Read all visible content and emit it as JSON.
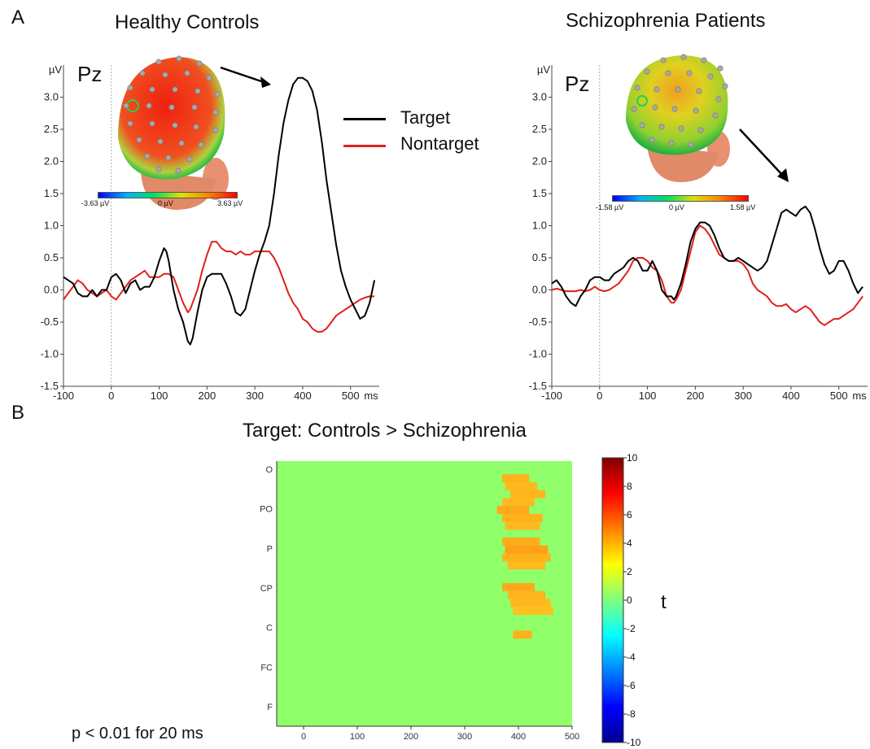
{
  "panel_a": {
    "letter": "A"
  },
  "panel_b": {
    "letter": "B",
    "title": "Target: Controls > Schizophrenia",
    "note": "p < 0.01 for 20 ms"
  },
  "colors": {
    "target": "#000000",
    "nontarget": "#e0201b",
    "sig_bg": "#90ff6a"
  },
  "legend": {
    "target": "Target",
    "nontarget": "Nontarget"
  },
  "chart_data": [
    {
      "type": "line",
      "title": "Healthy Controls",
      "electrode": "Pz",
      "ylabel": "µV",
      "xunit": "ms",
      "xlim": [
        -100,
        560
      ],
      "ylim": [
        -1.5,
        3.5
      ],
      "xticks": [
        -100,
        0,
        100,
        200,
        300,
        400,
        500
      ],
      "yticks": [
        "-1.5",
        "-1.0",
        "-0.5",
        "0.0",
        "0.5",
        "1.0",
        "1.5",
        "2.0",
        "2.5",
        "3.0"
      ],
      "topo_scale": [
        "-3.63 µV",
        "0 µV",
        "3.63 µV"
      ],
      "series": [
        {
          "name": "Target",
          "x": [
            -100,
            -90,
            -80,
            -70,
            -60,
            -50,
            -40,
            -30,
            -20,
            -10,
            0,
            10,
            20,
            30,
            40,
            50,
            60,
            70,
            80,
            90,
            100,
            110,
            115,
            120,
            130,
            140,
            150,
            160,
            165,
            170,
            180,
            190,
            200,
            210,
            220,
            230,
            240,
            250,
            260,
            270,
            280,
            290,
            300,
            310,
            320,
            330,
            340,
            350,
            360,
            370,
            380,
            390,
            400,
            410,
            420,
            430,
            440,
            450,
            460,
            470,
            480,
            490,
            500,
            510,
            520,
            530,
            540,
            550
          ],
          "y": [
            0.2,
            0.15,
            0.1,
            -0.05,
            -0.1,
            -0.1,
            0.0,
            -0.1,
            0.0,
            0.0,
            0.2,
            0.25,
            0.15,
            -0.05,
            0.1,
            0.15,
            0.0,
            0.05,
            0.05,
            0.2,
            0.45,
            0.65,
            0.6,
            0.45,
            0.0,
            -0.3,
            -0.5,
            -0.8,
            -0.85,
            -0.75,
            -0.35,
            0.0,
            0.2,
            0.25,
            0.25,
            0.25,
            0.1,
            -0.1,
            -0.35,
            -0.4,
            -0.3,
            0.0,
            0.3,
            0.55,
            0.75,
            1.0,
            1.5,
            2.1,
            2.6,
            2.95,
            3.2,
            3.3,
            3.3,
            3.25,
            3.1,
            2.8,
            2.3,
            1.7,
            1.2,
            0.7,
            0.3,
            0.05,
            -0.15,
            -0.3,
            -0.45,
            -0.4,
            -0.2,
            0.15
          ]
        },
        {
          "name": "Nontarget",
          "x": [
            -100,
            -90,
            -80,
            -70,
            -60,
            -50,
            -40,
            -30,
            -20,
            -10,
            0,
            10,
            20,
            30,
            40,
            50,
            60,
            70,
            80,
            90,
            100,
            110,
            120,
            130,
            140,
            150,
            160,
            165,
            170,
            180,
            190,
            200,
            210,
            220,
            230,
            240,
            250,
            260,
            270,
            280,
            290,
            300,
            310,
            320,
            330,
            340,
            350,
            360,
            370,
            380,
            390,
            400,
            410,
            420,
            430,
            440,
            450,
            460,
            470,
            480,
            490,
            500,
            510,
            520,
            530,
            540,
            550
          ],
          "y": [
            -0.15,
            -0.05,
            0.05,
            0.15,
            0.1,
            0.0,
            -0.05,
            -0.1,
            -0.05,
            0.0,
            -0.1,
            -0.15,
            -0.05,
            0.05,
            0.15,
            0.2,
            0.25,
            0.3,
            0.2,
            0.2,
            0.2,
            0.25,
            0.25,
            0.2,
            0.0,
            -0.2,
            -0.35,
            -0.3,
            -0.2,
            0.0,
            0.3,
            0.55,
            0.75,
            0.75,
            0.65,
            0.6,
            0.6,
            0.55,
            0.6,
            0.55,
            0.55,
            0.6,
            0.6,
            0.6,
            0.6,
            0.5,
            0.35,
            0.15,
            -0.05,
            -0.2,
            -0.3,
            -0.45,
            -0.5,
            -0.6,
            -0.65,
            -0.65,
            -0.6,
            -0.5,
            -0.4,
            -0.35,
            -0.3,
            -0.25,
            -0.2,
            -0.15,
            -0.12,
            -0.1,
            -0.1
          ]
        }
      ]
    },
    {
      "type": "line",
      "title": "Schizophrenia Patients",
      "electrode": "Pz",
      "ylabel": "µV",
      "xunit": "ms",
      "xlim": [
        -100,
        560
      ],
      "ylim": [
        -1.5,
        3.5
      ],
      "xticks": [
        -100,
        0,
        100,
        200,
        300,
        400,
        500
      ],
      "yticks": [
        "-1.5",
        "-1.0",
        "-0.5",
        "0.0",
        "0.5",
        "1.0",
        "1.5",
        "2.0",
        "2.5",
        "3.0"
      ],
      "topo_scale": [
        "-1.58 µV",
        "0 µV",
        "1.58 µV"
      ],
      "series": [
        {
          "name": "Target",
          "x": [
            -100,
            -90,
            -80,
            -70,
            -60,
            -50,
            -40,
            -30,
            -20,
            -10,
            0,
            10,
            20,
            30,
            40,
            50,
            60,
            70,
            80,
            90,
            100,
            110,
            120,
            130,
            140,
            150,
            155,
            160,
            170,
            180,
            190,
            200,
            210,
            220,
            230,
            240,
            250,
            260,
            270,
            280,
            290,
            300,
            310,
            320,
            330,
            340,
            350,
            360,
            370,
            380,
            390,
            400,
            410,
            420,
            430,
            440,
            450,
            460,
            470,
            480,
            490,
            500,
            510,
            520,
            530,
            540,
            550
          ],
          "y": [
            0.1,
            0.15,
            0.05,
            -0.1,
            -0.2,
            -0.25,
            -0.1,
            0.0,
            0.15,
            0.2,
            0.2,
            0.15,
            0.15,
            0.25,
            0.3,
            0.35,
            0.45,
            0.5,
            0.45,
            0.3,
            0.3,
            0.45,
            0.3,
            0.0,
            -0.1,
            -0.1,
            -0.15,
            -0.1,
            0.1,
            0.4,
            0.75,
            0.95,
            1.05,
            1.05,
            1.0,
            0.85,
            0.65,
            0.5,
            0.45,
            0.45,
            0.5,
            0.45,
            0.4,
            0.35,
            0.3,
            0.35,
            0.45,
            0.7,
            0.95,
            1.2,
            1.25,
            1.2,
            1.15,
            1.25,
            1.3,
            1.2,
            0.95,
            0.65,
            0.4,
            0.25,
            0.3,
            0.45,
            0.45,
            0.3,
            0.1,
            -0.05,
            0.05
          ]
        },
        {
          "name": "Nontarget",
          "x": [
            -100,
            -90,
            -80,
            -70,
            -60,
            -50,
            -40,
            -30,
            -20,
            -10,
            0,
            10,
            20,
            30,
            40,
            50,
            60,
            70,
            80,
            90,
            100,
            110,
            120,
            130,
            140,
            150,
            155,
            160,
            170,
            180,
            190,
            200,
            210,
            220,
            230,
            240,
            250,
            260,
            270,
            280,
            290,
            300,
            310,
            320,
            330,
            340,
            350,
            360,
            370,
            380,
            390,
            400,
            410,
            420,
            430,
            440,
            450,
            460,
            470,
            480,
            490,
            500,
            510,
            520,
            530,
            540,
            550
          ],
          "y": [
            0.0,
            0.02,
            0.0,
            -0.02,
            -0.02,
            -0.02,
            0.0,
            -0.02,
            0.0,
            0.05,
            0.0,
            -0.02,
            0.0,
            0.05,
            0.1,
            0.2,
            0.3,
            0.45,
            0.5,
            0.5,
            0.45,
            0.35,
            0.3,
            0.15,
            -0.1,
            -0.2,
            -0.2,
            -0.15,
            0.0,
            0.3,
            0.6,
            0.9,
            1.0,
            0.95,
            0.85,
            0.7,
            0.55,
            0.5,
            0.45,
            0.45,
            0.45,
            0.4,
            0.3,
            0.1,
            0.0,
            -0.05,
            -0.1,
            -0.2,
            -0.25,
            -0.25,
            -0.22,
            -0.3,
            -0.35,
            -0.3,
            -0.25,
            -0.3,
            -0.4,
            -0.5,
            -0.55,
            -0.5,
            -0.45,
            -0.45,
            -0.4,
            -0.35,
            -0.3,
            -0.2,
            -0.1
          ]
        }
      ]
    },
    {
      "type": "heatmap",
      "title": "Target: Controls > Schizophrenia",
      "xlim": [
        -50,
        500
      ],
      "xticks": [
        0,
        100,
        200,
        300,
        400,
        500
      ],
      "channels": [
        "O",
        "PO",
        "P",
        "CP",
        "C",
        "FC",
        "F"
      ],
      "colorbar": {
        "label": "t",
        "min": -10,
        "max": 10,
        "ticks": [
          "10",
          "8",
          "6",
          "4",
          "2",
          "0",
          "-2",
          "-4",
          "-6",
          "-8",
          "-10"
        ]
      },
      "significant_rows": [
        {
          "ch": 0.25,
          "start": 370,
          "end": 420,
          "t": 3.2
        },
        {
          "ch": 0.45,
          "start": 375,
          "end": 435,
          "t": 3.0
        },
        {
          "ch": 0.65,
          "start": 385,
          "end": 450,
          "t": 3.1
        },
        {
          "ch": 0.85,
          "start": 370,
          "end": 430,
          "t": 3.0
        },
        {
          "ch": 1.05,
          "start": 360,
          "end": 420,
          "t": 3.4
        },
        {
          "ch": 1.25,
          "start": 370,
          "end": 445,
          "t": 3.2
        },
        {
          "ch": 1.45,
          "start": 375,
          "end": 440,
          "t": 3.0
        },
        {
          "ch": 1.85,
          "start": 370,
          "end": 440,
          "t": 3.3
        },
        {
          "ch": 2.05,
          "start": 375,
          "end": 455,
          "t": 3.6
        },
        {
          "ch": 2.25,
          "start": 370,
          "end": 460,
          "t": 3.2
        },
        {
          "ch": 2.45,
          "start": 380,
          "end": 450,
          "t": 3.0
        },
        {
          "ch": 3.0,
          "start": 370,
          "end": 430,
          "t": 3.4
        },
        {
          "ch": 3.2,
          "start": 380,
          "end": 450,
          "t": 3.1
        },
        {
          "ch": 3.4,
          "start": 385,
          "end": 460,
          "t": 3.0
        },
        {
          "ch": 3.6,
          "start": 390,
          "end": 465,
          "t": 2.8
        },
        {
          "ch": 4.2,
          "start": 390,
          "end": 425,
          "t": 3.2
        }
      ]
    }
  ]
}
